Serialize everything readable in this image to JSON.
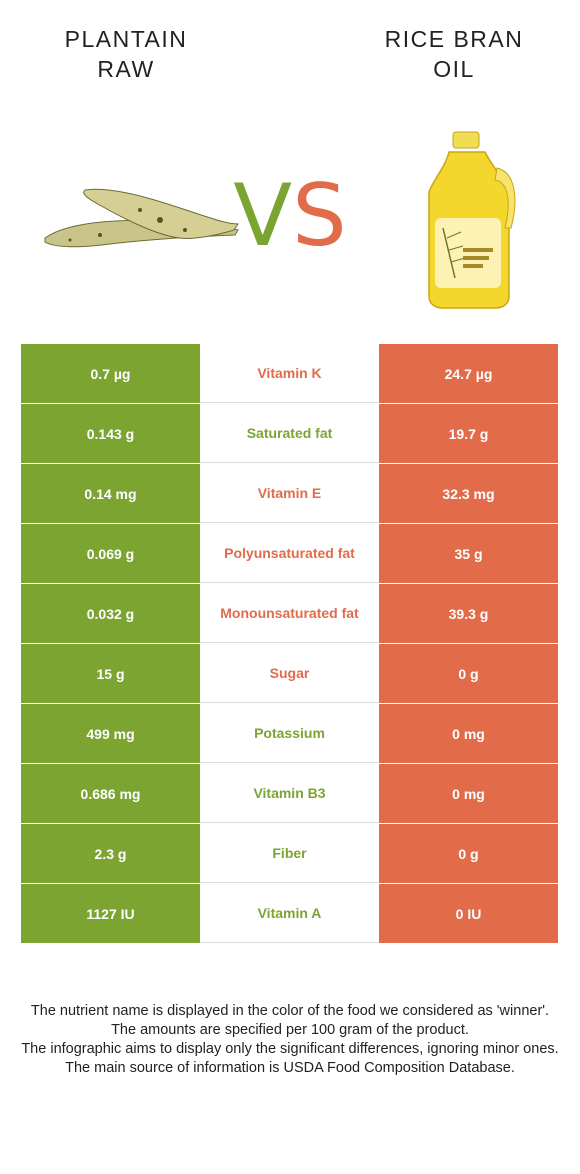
{
  "header": {
    "left_title_line1": "PLANTAIN",
    "left_title_line2": "RAW",
    "right_title_line1": "RICE BRAN",
    "right_title_line2": "OIL",
    "vs_v": "V",
    "vs_s": "S"
  },
  "colors": {
    "left_food": "#7ba431",
    "right_food": "#e26b4a"
  },
  "images": {
    "left": "plantain-image",
    "right": "oil-bottle-image"
  },
  "rows": [
    {
      "left": "0.7 µg",
      "nutrient": "Vitamin K",
      "right": "24.7 µg",
      "winner": "right"
    },
    {
      "left": "0.143 g",
      "nutrient": "Saturated fat",
      "right": "19.7 g",
      "winner": "left"
    },
    {
      "left": "0.14 mg",
      "nutrient": "Vitamin E",
      "right": "32.3 mg",
      "winner": "right"
    },
    {
      "left": "0.069 g",
      "nutrient": "Polyunsaturated fat",
      "right": "35 g",
      "winner": "right"
    },
    {
      "left": "0.032 g",
      "nutrient": "Monounsaturated fat",
      "right": "39.3 g",
      "winner": "right"
    },
    {
      "left": "15 g",
      "nutrient": "Sugar",
      "right": "0 g",
      "winner": "right"
    },
    {
      "left": "499 mg",
      "nutrient": "Potassium",
      "right": "0 mg",
      "winner": "left"
    },
    {
      "left": "0.686 mg",
      "nutrient": "Vitamin B3",
      "right": "0 mg",
      "winner": "left"
    },
    {
      "left": "2.3 g",
      "nutrient": "Fiber",
      "right": "0 g",
      "winner": "left"
    },
    {
      "left": "1127 IU",
      "nutrient": "Vitamin A",
      "right": "0 IU",
      "winner": "left"
    }
  ],
  "footer": {
    "line1": "The nutrient name is displayed in the color of the food we considered as 'winner'.",
    "line2": "The amounts are specified per 100 gram of the product.",
    "line3": "The infographic aims to display only the significant differences, ignoring minor ones.",
    "line4": "The main source of information is USDA Food Composition Database."
  }
}
